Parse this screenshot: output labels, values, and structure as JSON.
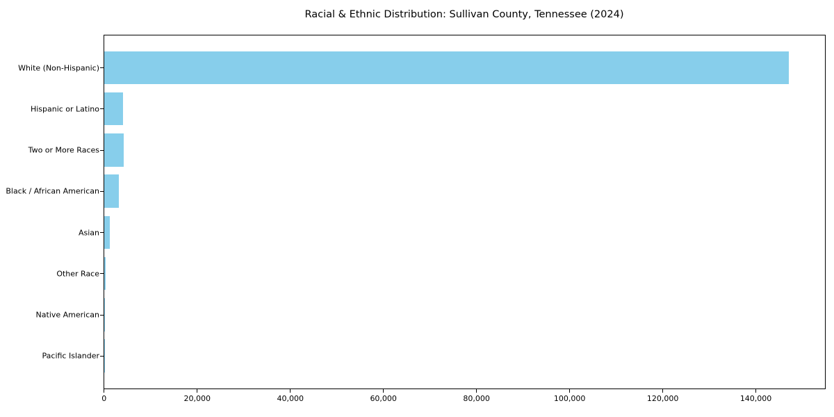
{
  "title": "Racial & Ethnic Distribution: Sullivan County, Tennessee (2024)",
  "chart_data": {
    "type": "bar",
    "orientation": "horizontal",
    "title": "Racial & Ethnic Distribution: Sullivan County, Tennessee (2024)",
    "xlabel": "",
    "ylabel": "",
    "categories": [
      "White (Non-Hispanic)",
      "Hispanic or Latino",
      "Two or More Races",
      "Black / African American",
      "Asian",
      "Other Race",
      "Native American",
      "Pacific Islander"
    ],
    "values": [
      147200,
      4050,
      4300,
      3150,
      1270,
      350,
      160,
      40
    ],
    "xlim": [
      0,
      154800
    ],
    "x_ticks": [
      0,
      20000,
      40000,
      60000,
      80000,
      100000,
      120000,
      140000
    ],
    "x_tick_labels": [
      "0",
      "20,000",
      "40,000",
      "60,000",
      "80,000",
      "100,000",
      "120,000",
      "140,000"
    ],
    "bar_color": "#87CEEB",
    "grid": false,
    "legend": null,
    "category_order": "top-to-bottom"
  }
}
